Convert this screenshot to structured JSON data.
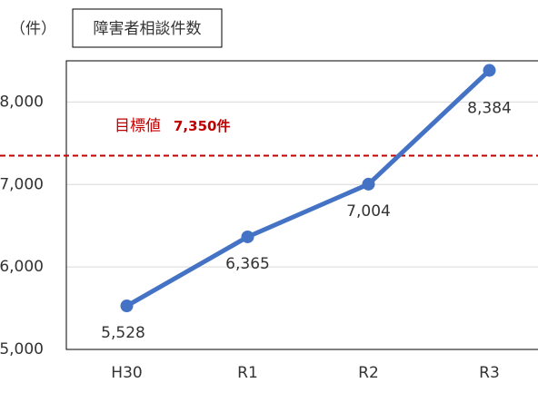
{
  "chart_data": {
    "type": "line",
    "title": "障害者相談件数",
    "unit_label": "（件）",
    "categories": [
      "H30",
      "R1",
      "R2",
      "R3"
    ],
    "series": [
      {
        "name": "障害者相談件数",
        "color": "#4472c4",
        "values": [
          5528,
          6365,
          7004,
          8384
        ],
        "value_labels": [
          "5,528",
          "6,365",
          "7,004",
          "8,384"
        ]
      }
    ],
    "ylim": [
      5000,
      8500
    ],
    "yticks": [
      {
        "value": 5000,
        "label": "5,000"
      },
      {
        "value": 6000,
        "label": "6,000"
      },
      {
        "value": 7000,
        "label": "7,000"
      },
      {
        "value": 8000,
        "label": "8,000"
      }
    ],
    "grid": true,
    "target": {
      "label": "目標値",
      "value": 7350,
      "value_label": "7,350件",
      "color": "#c00000"
    }
  }
}
